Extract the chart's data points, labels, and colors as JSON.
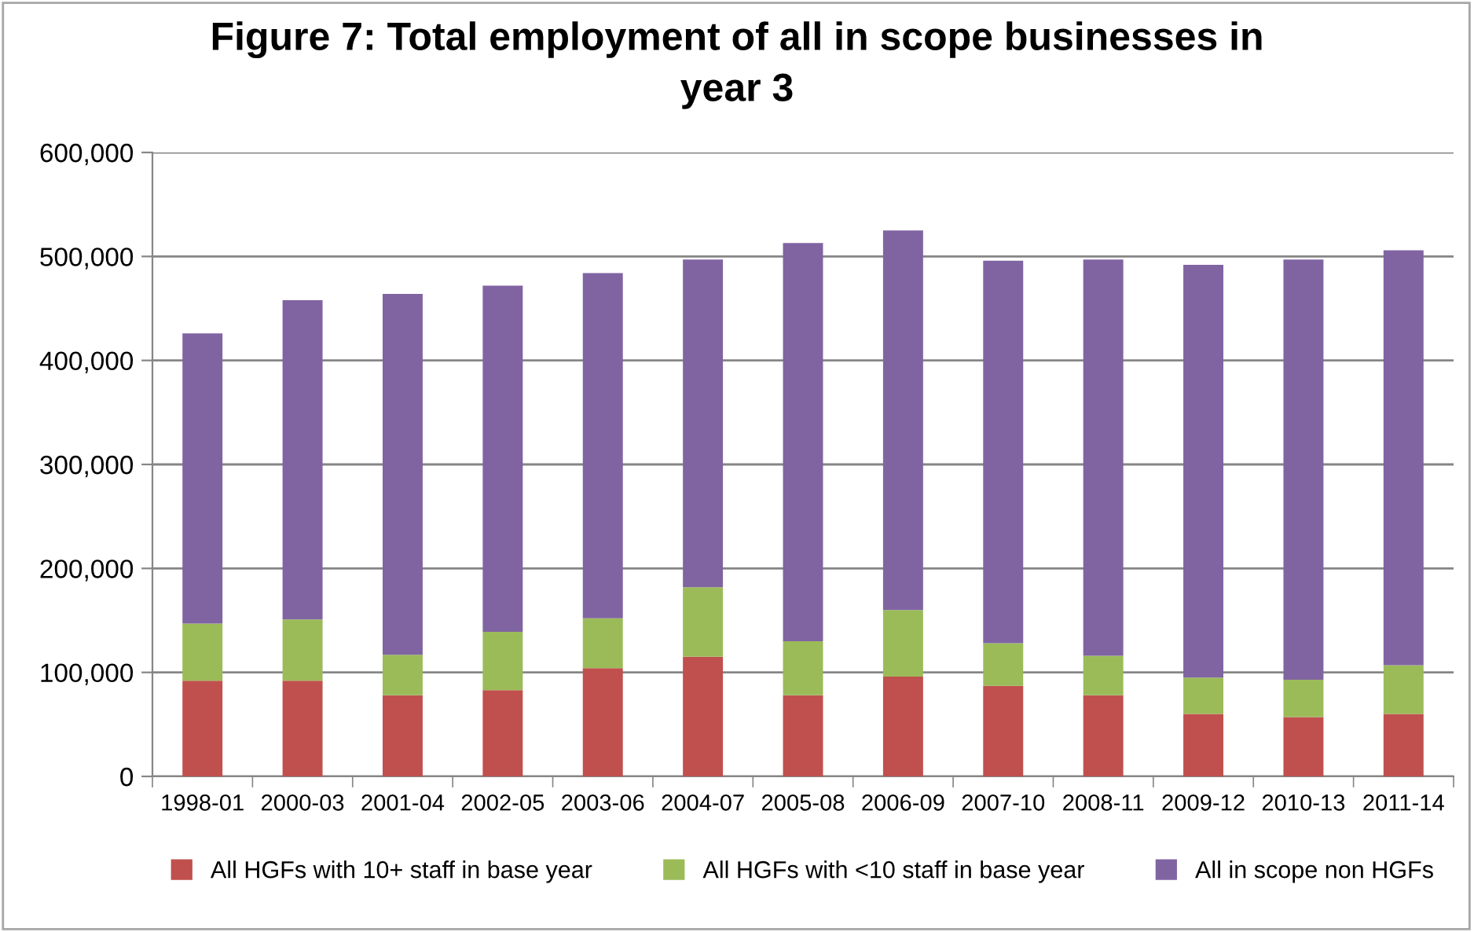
{
  "chart_data": {
    "type": "bar",
    "stacked": true,
    "title": "Figure 7: Total employment of all in scope businesses in\nyear 3",
    "categories": [
      "1998-01",
      "2000-03",
      "2001-04",
      "2002-05",
      "2003-06",
      "2004-07",
      "2005-08",
      "2006-09",
      "2007-10",
      "2008-11",
      "2009-12",
      "2010-13",
      "2011-14"
    ],
    "series": [
      {
        "name": "All HGFs with 10+ staff in base year",
        "color": "#c0504d",
        "values": [
          92000,
          92000,
          78000,
          83000,
          104000,
          115000,
          78000,
          96000,
          87000,
          78000,
          60000,
          57000,
          60000
        ]
      },
      {
        "name": "All HGFs with <10 staff in base year",
        "color": "#9bbb59",
        "values": [
          55000,
          59000,
          39000,
          56000,
          48000,
          67000,
          52000,
          64000,
          41000,
          38000,
          35000,
          36000,
          47000
        ]
      },
      {
        "name": "All in scope non HGFs",
        "color": "#8064a2",
        "values": [
          279000,
          307000,
          347000,
          333000,
          332000,
          315000,
          383000,
          365000,
          368000,
          381000,
          397000,
          404000,
          399000
        ]
      }
    ],
    "ylim": [
      0,
      600000
    ],
    "yticks": [
      0,
      {
        "value": 100000,
        "label": "100,000"
      },
      {
        "value": 200000,
        "label": "200,000"
      },
      {
        "value": 300000,
        "label": "300,000"
      },
      {
        "value": 400000,
        "label": "400,000"
      },
      {
        "value": 500000,
        "label": "500,000"
      },
      {
        "value": 600000,
        "label": "600,000"
      }
    ],
    "grid": "y",
    "legend": "bottom"
  }
}
